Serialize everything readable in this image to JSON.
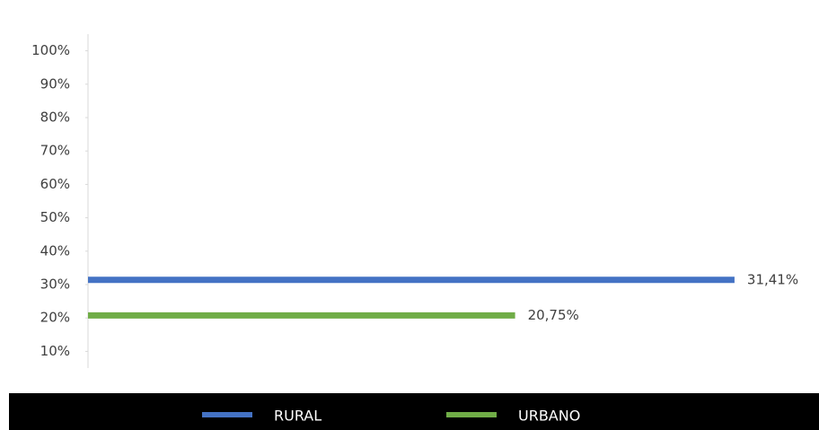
{
  "chart_data": {
    "type": "line",
    "series": [
      {
        "name": "RURAL",
        "color": "#4472c4",
        "values": [
          31.41
        ],
        "value_labels": [
          "31,41%"
        ]
      },
      {
        "name": "URBANO",
        "color": "#70ad47",
        "values": [
          20.75
        ],
        "value_labels": [
          "20,75%"
        ]
      }
    ],
    "ylim": [
      5,
      105
    ],
    "yticks": [
      {
        "value": 10,
        "label": "10%"
      },
      {
        "value": 20,
        "label": "20%"
      },
      {
        "value": 30,
        "label": "30%"
      },
      {
        "value": 40,
        "label": "40%"
      },
      {
        "value": 50,
        "label": "50%"
      },
      {
        "value": 60,
        "label": "60%"
      },
      {
        "value": 70,
        "label": "70%"
      },
      {
        "value": 80,
        "label": "80%"
      },
      {
        "value": 90,
        "label": "90%"
      },
      {
        "value": 100,
        "label": "100%"
      }
    ],
    "legend": "bottom"
  }
}
